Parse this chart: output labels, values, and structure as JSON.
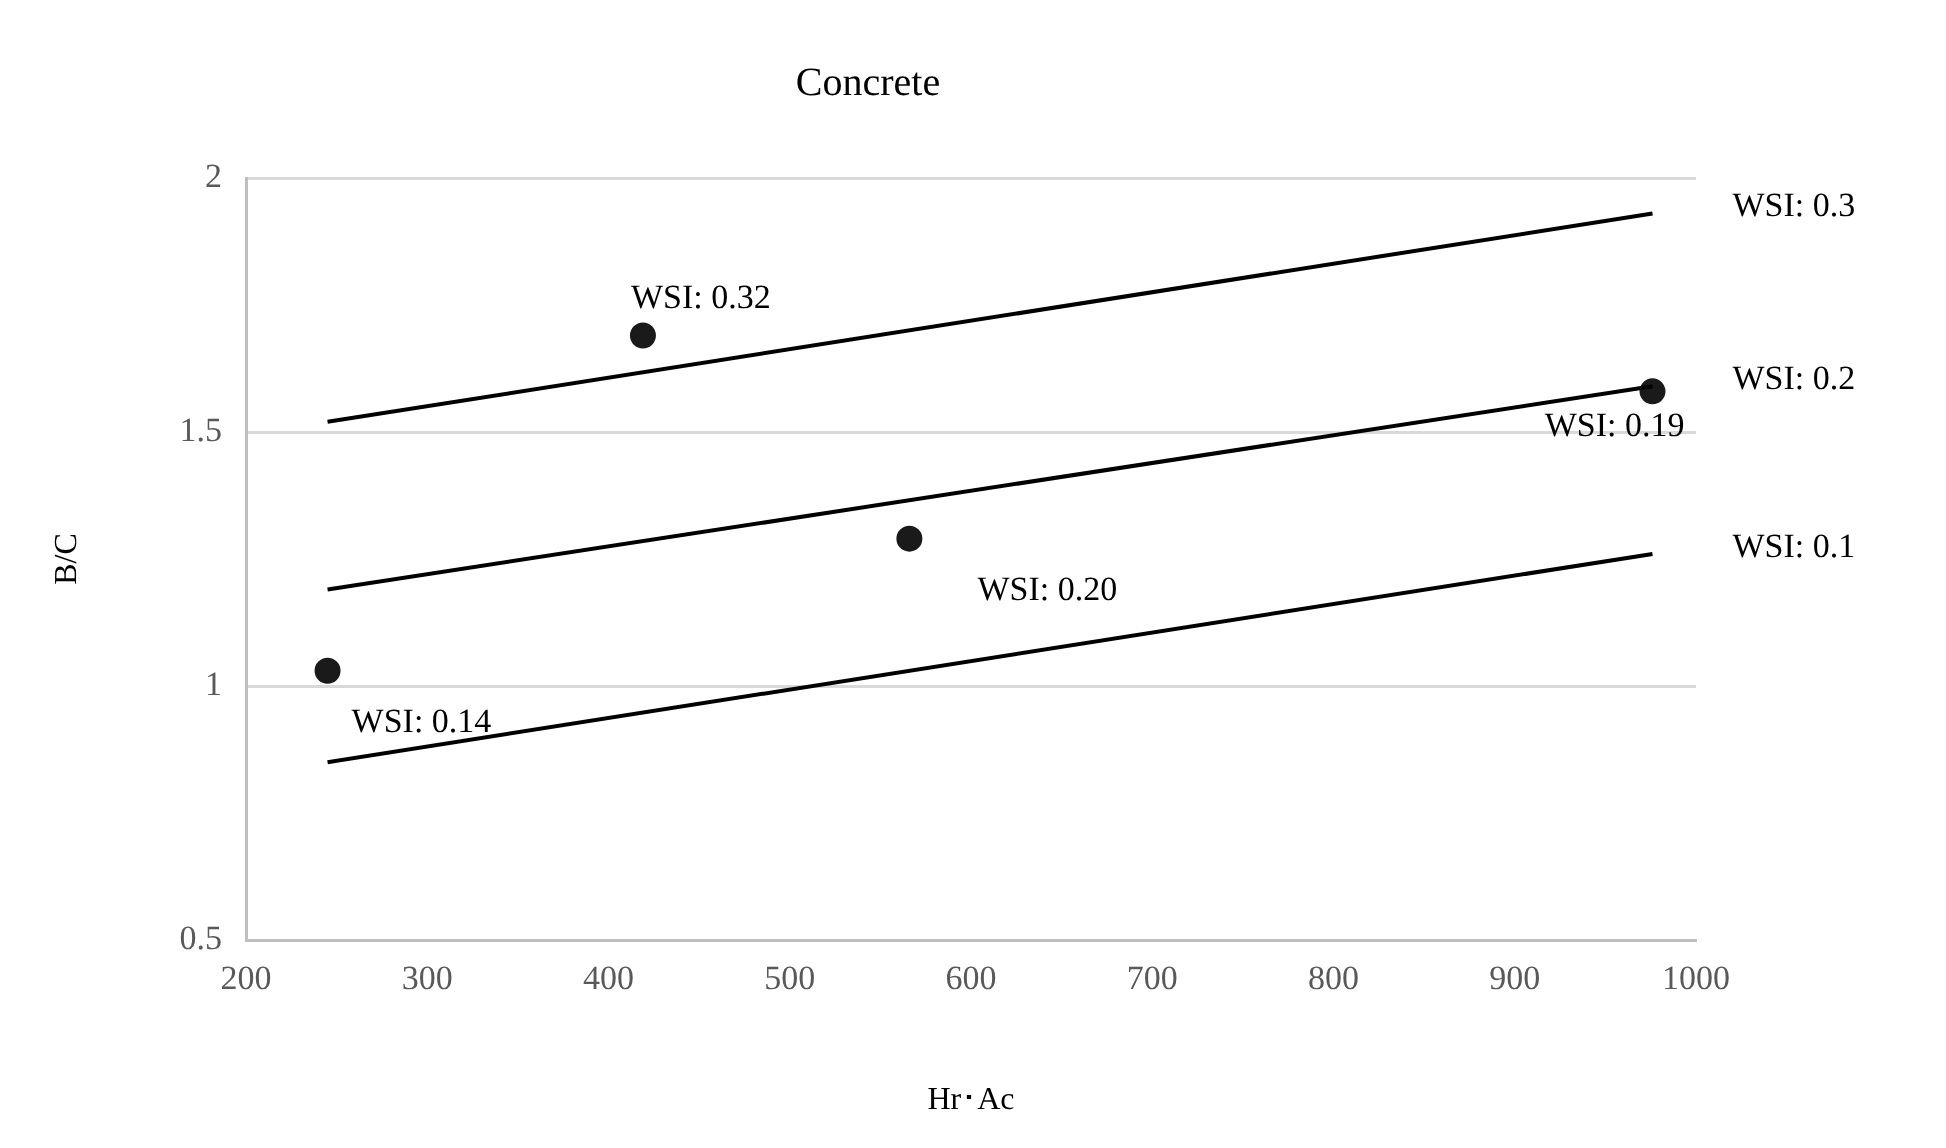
{
  "chart_data": {
    "type": "line",
    "title": "Concrete",
    "xlabel": "Hr･Ac",
    "ylabel": "B/C",
    "xlim": [
      200,
      1000
    ],
    "xticks": [
      200,
      300,
      400,
      500,
      600,
      700,
      800,
      900,
      1000
    ],
    "ylim": [
      0.5,
      2
    ],
    "yticks": [
      0.5,
      1,
      1.5,
      2
    ],
    "grid": "y",
    "legend": false,
    "series": [
      {
        "name": "WSI: 0.3",
        "marker": "none",
        "color": "#000000",
        "x": [
          245,
          976
        ],
        "values": [
          1.52,
          1.93
        ]
      },
      {
        "name": "WSI: 0.2",
        "marker": "none",
        "color": "#000000",
        "x": [
          245,
          976
        ],
        "values": [
          1.19,
          1.59
        ]
      },
      {
        "name": "WSI: 0.1",
        "marker": "none",
        "color": "#000000",
        "x": [
          245,
          976
        ],
        "values": [
          0.85,
          1.26
        ]
      },
      {
        "type": "scatter",
        "marker": "circle",
        "color": "#1a1a1a",
        "x": [
          245,
          419,
          566,
          976
        ],
        "values": [
          1.03,
          1.69,
          1.29,
          1.58
        ]
      }
    ],
    "annotations": [
      {
        "text": "WSI: 0.14",
        "x": 245,
        "y": 1.03
      },
      {
        "text": "WSI: 0.32",
        "x": 419,
        "y": 1.69
      },
      {
        "text": "WSI: 0.20",
        "x": 566,
        "y": 1.29
      },
      {
        "text": "WSI: 0.19",
        "x": 976,
        "y": 1.58
      }
    ]
  }
}
